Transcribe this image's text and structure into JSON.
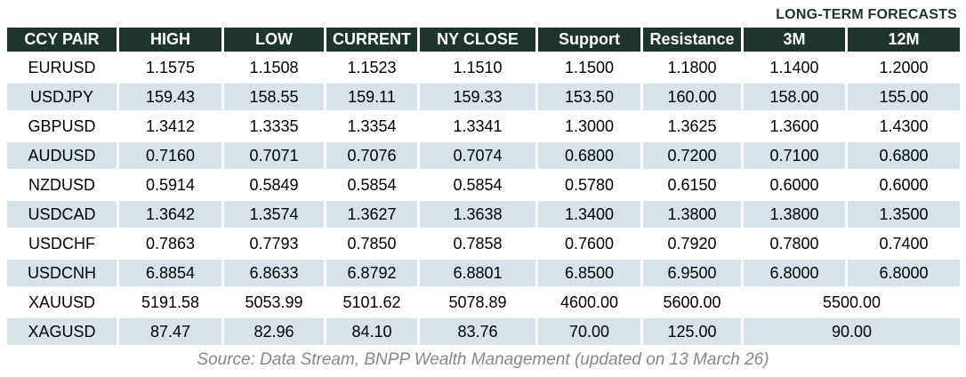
{
  "title": "LONG-TERM FORECASTS",
  "table": {
    "headers": [
      "CCY PAIR",
      "HIGH",
      "LOW",
      "CURRENT",
      "NY CLOSE",
      "Support",
      "Resistance",
      "3M",
      "12M"
    ],
    "rows": [
      {
        "cells": [
          "EURUSD",
          "1.1575",
          "1.1508",
          "1.1523",
          "1.1510",
          "1.1500",
          "1.1800",
          "1.1400",
          "1.2000"
        ],
        "merge_last_two": false
      },
      {
        "cells": [
          "USDJPY",
          "159.43",
          "158.55",
          "159.11",
          "159.33",
          "153.50",
          "160.00",
          "158.00",
          "155.00"
        ],
        "merge_last_two": false
      },
      {
        "cells": [
          "GBPUSD",
          "1.3412",
          "1.3335",
          "1.3354",
          "1.3341",
          "1.3000",
          "1.3625",
          "1.3600",
          "1.4300"
        ],
        "merge_last_two": false
      },
      {
        "cells": [
          "AUDUSD",
          "0.7160",
          "0.7071",
          "0.7076",
          "0.7074",
          "0.6800",
          "0.7200",
          "0.7100",
          "0.6800"
        ],
        "merge_last_two": false
      },
      {
        "cells": [
          "NZDUSD",
          "0.5914",
          "0.5849",
          "0.5854",
          "0.5854",
          "0.5780",
          "0.6150",
          "0.6000",
          "0.6000"
        ],
        "merge_last_two": false
      },
      {
        "cells": [
          "USDCAD",
          "1.3642",
          "1.3574",
          "1.3627",
          "1.3638",
          "1.3400",
          "1.3800",
          "1.3800",
          "1.3500"
        ],
        "merge_last_two": false
      },
      {
        "cells": [
          "USDCHF",
          "0.7863",
          "0.7793",
          "0.7850",
          "0.7858",
          "0.7600",
          "0.7920",
          "0.7800",
          "0.7400"
        ],
        "merge_last_two": false
      },
      {
        "cells": [
          "USDCNH",
          "6.8854",
          "6.8633",
          "6.8792",
          "6.8801",
          "6.8500",
          "6.9500",
          "6.8000",
          "6.8000"
        ],
        "merge_last_two": false
      },
      {
        "cells": [
          "XAUUSD",
          "5191.58",
          "5053.99",
          "5101.62",
          "5078.89",
          "4600.00",
          "5600.00",
          "5500.00"
        ],
        "merge_last_two": true
      },
      {
        "cells": [
          "XAGUSD",
          "87.47",
          "82.96",
          "84.10",
          "83.76",
          "70.00",
          "125.00",
          "90.00"
        ],
        "merge_last_two": true
      }
    ]
  },
  "footer": "Source: Data Stream, BNPP Wealth Management (updated on 13 March 26)",
  "colors": {
    "header_bg": "#20342e",
    "header_text": "#ffffff",
    "alt_row_bg": "#d7e3e9",
    "title_text": "#1e332d",
    "footer_text": "#878787"
  }
}
